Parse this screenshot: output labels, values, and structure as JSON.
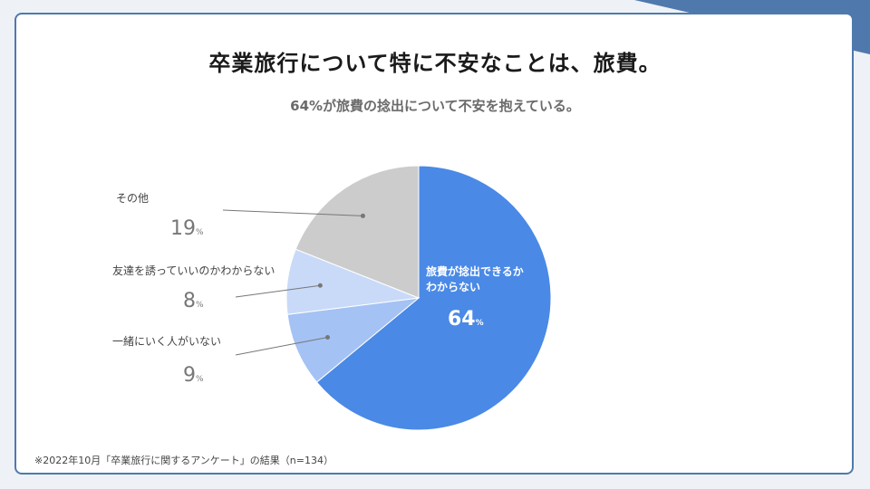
{
  "title": "卒業旅行について特に不安なことは、旅費。",
  "subtitle": "64%が旅費の捻出について不安を抱えている。",
  "colors": {
    "accent": "#4f79ad",
    "slice_main": "#4a89e6",
    "slice_light1": "#a4c2f4",
    "slice_light2": "#c9daf8",
    "slice_gray": "#cccccc"
  },
  "chart_data": {
    "type": "pie",
    "unit": "%",
    "slices": [
      {
        "label_line1": "旅費が捻出できるか",
        "label_line2": "わからない",
        "value": 64,
        "color": "#4a89e6"
      },
      {
        "label": "一緒にいく人がいない",
        "value": 9,
        "color": "#a4c2f4"
      },
      {
        "label": "友達を誘っていいのかわからない",
        "value": 8,
        "color": "#c9daf8"
      },
      {
        "label": "その他",
        "value": 19,
        "color": "#cccccc"
      }
    ]
  },
  "footnote": "※2022年10月「卒業旅行に関するアンケート」の結果（n=134）"
}
